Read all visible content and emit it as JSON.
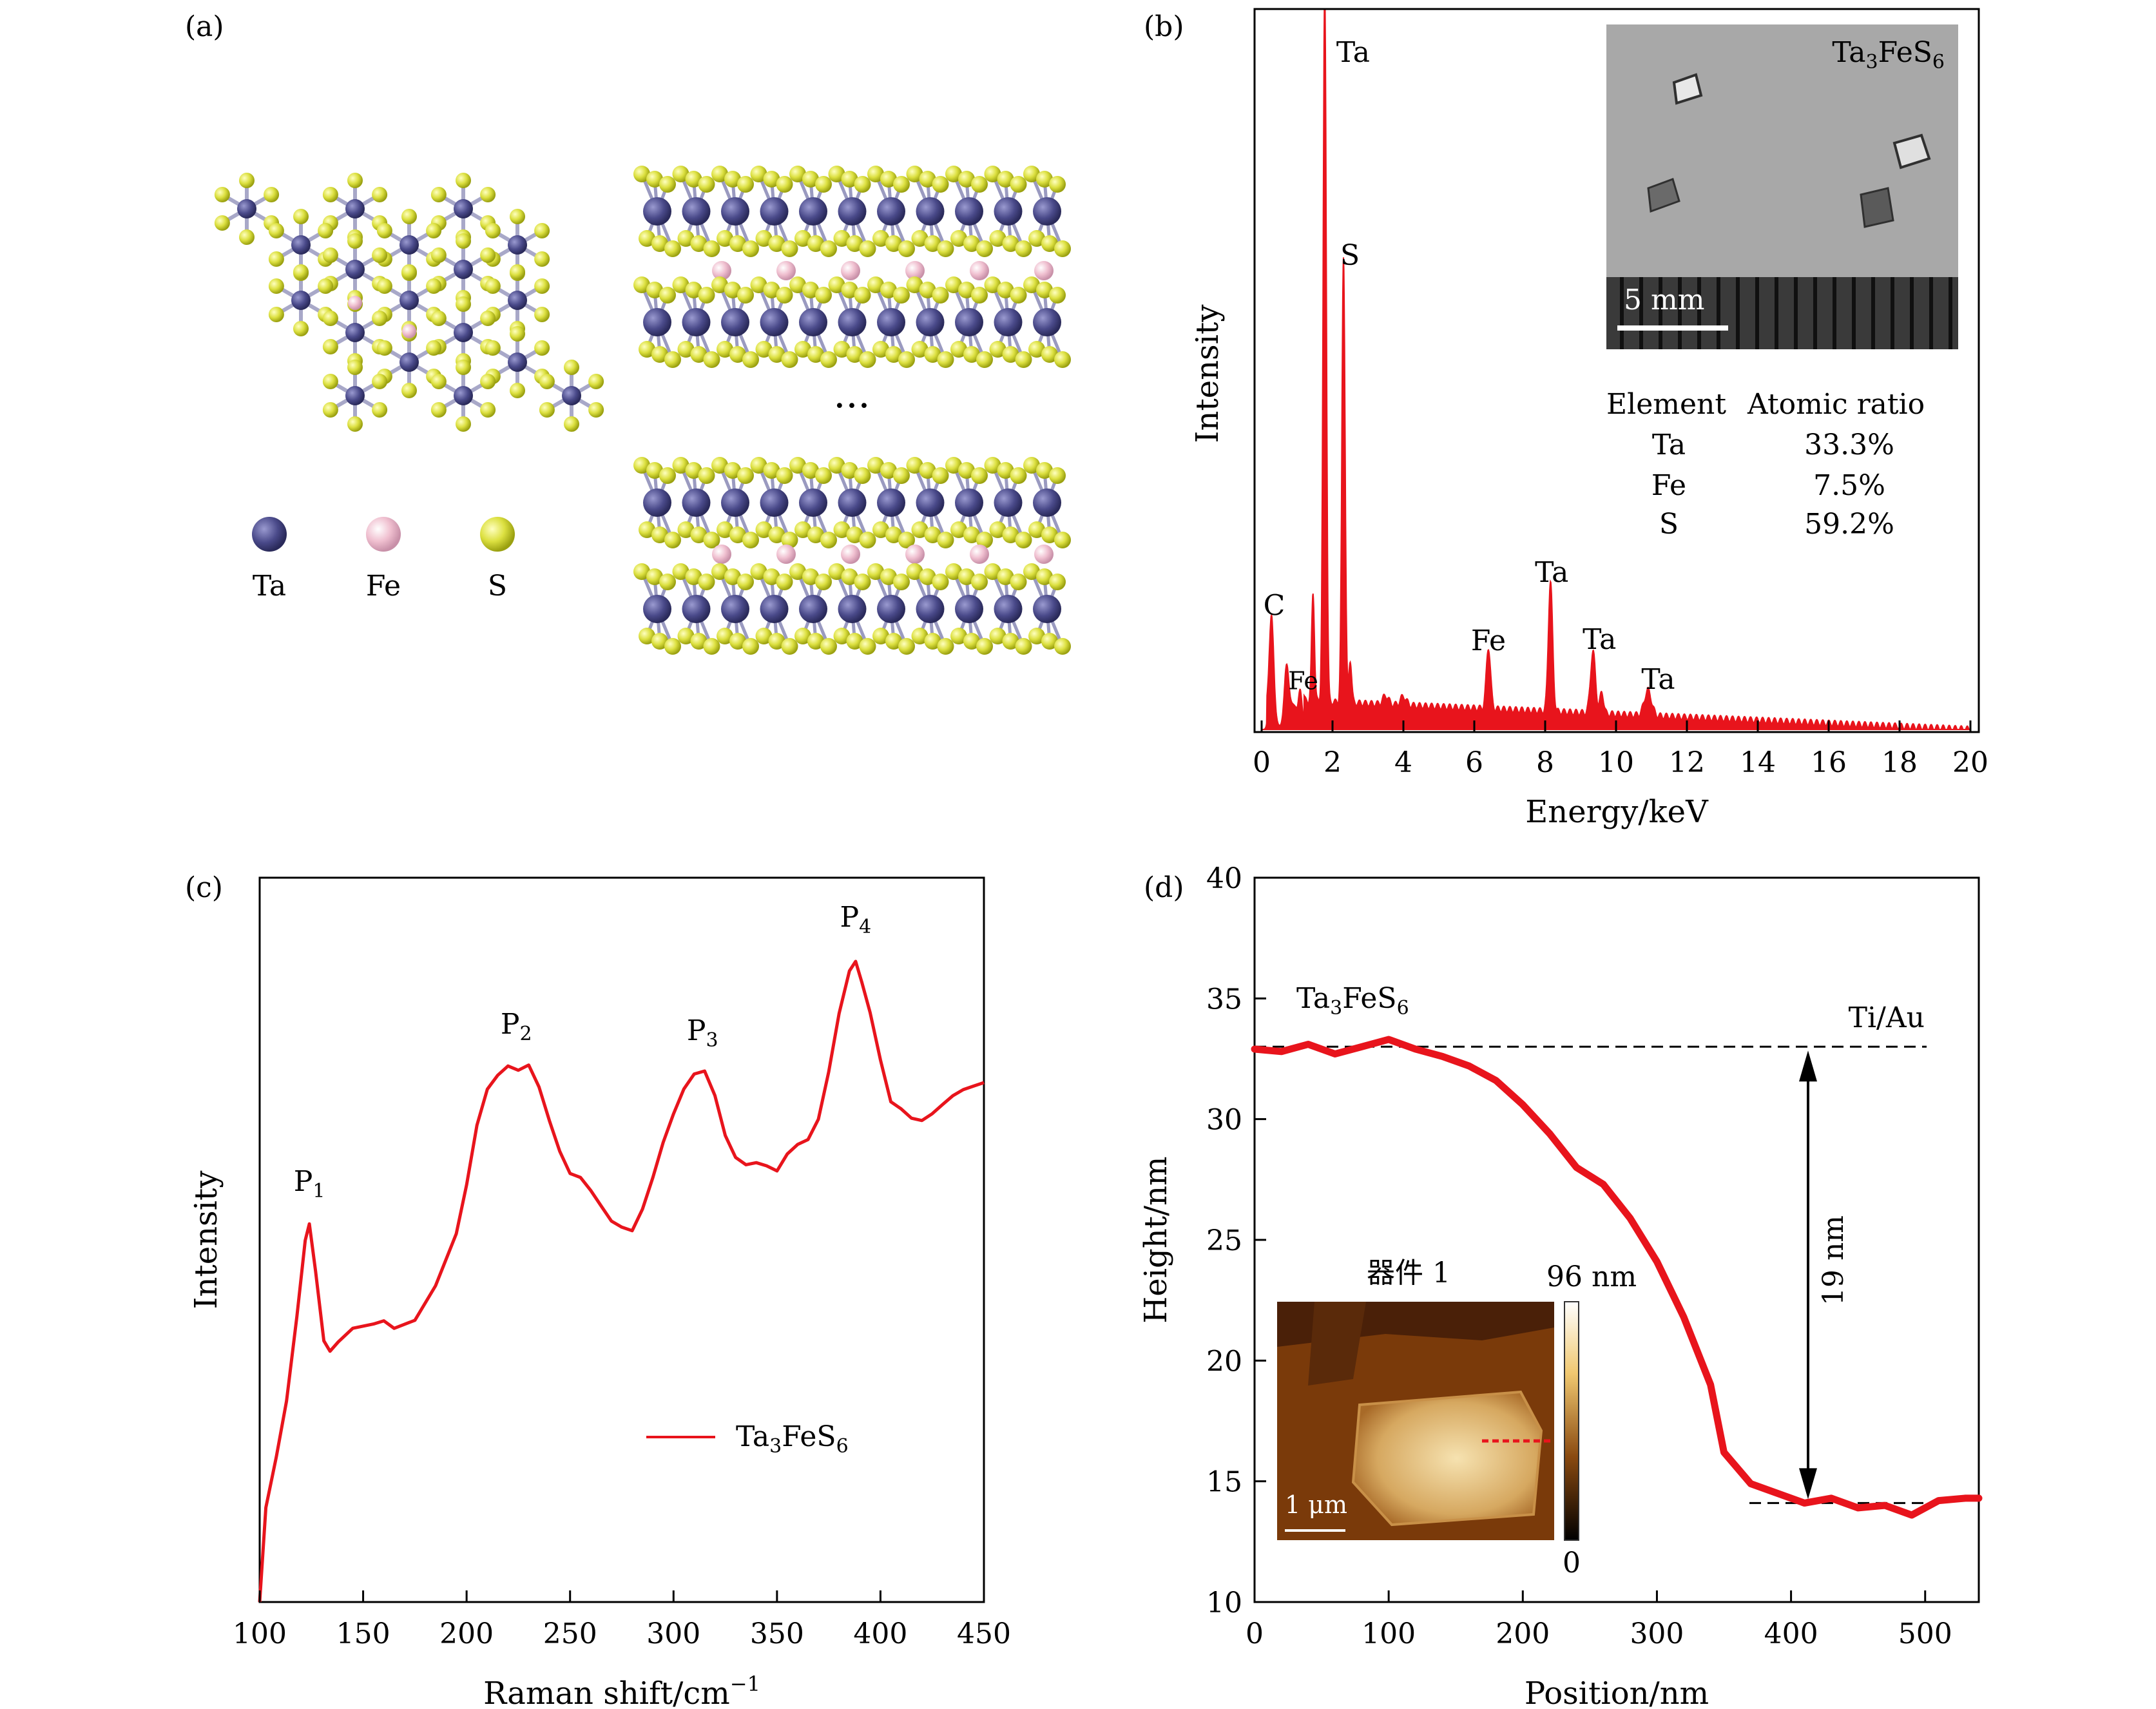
{
  "panels": {
    "a": {
      "tag": "(a)",
      "legend": [
        {
          "label": "Ta",
          "color": "#4a4a8a"
        },
        {
          "label": "Fe",
          "color": "#e8b4c8"
        },
        {
          "label": "S",
          "color": "#d4dc3c"
        }
      ],
      "ellipsis": "···"
    },
    "b": {
      "tag": "(b)",
      "inset_label": "Ta3FeS6",
      "scale_bar": "5 mm",
      "table": {
        "headers": [
          "Element",
          "Atomic ratio"
        ],
        "rows": [
          [
            "Ta",
            "33.3%"
          ],
          [
            "Fe",
            "7.5%"
          ],
          [
            "S",
            "59.2%"
          ]
        ]
      }
    },
    "c": {
      "tag": "(c)"
    },
    "d": {
      "tag": "(d)",
      "inset_title": "器件 1",
      "colorbar_max": "96 nm",
      "colorbar_min": "0",
      "scale_bar": "1 μm",
      "step_label": "19 nm"
    }
  },
  "colors": {
    "series": "#e8141c",
    "afm_light": "#f0d8a0",
    "afm_dark": "#5a2a0a"
  },
  "chart_data": [
    {
      "id": "b",
      "type": "area",
      "xlabel": "Energy/keV",
      "ylabel": "Intensity",
      "xlim": [
        0,
        20
      ],
      "xticks": [
        0,
        2,
        4,
        6,
        8,
        10,
        12,
        14,
        16,
        18,
        20
      ],
      "peaks": [
        {
          "label": "C",
          "x": 0.28,
          "y": 0.13
        },
        {
          "label": "Fe",
          "x": 0.7,
          "y": 0.07
        },
        {
          "label": "Ta",
          "x": 1.78,
          "y": 1.0
        },
        {
          "label": "S",
          "x": 2.31,
          "y": 0.62
        },
        {
          "label": "Fe",
          "x": 6.4,
          "y": 0.085
        },
        {
          "label": "Ta",
          "x": 8.15,
          "y": 0.18
        },
        {
          "label": "Ta",
          "x": 9.35,
          "y": 0.085
        },
        {
          "label": "Ta",
          "x": 10.9,
          "y": 0.035
        }
      ]
    },
    {
      "id": "c",
      "type": "line",
      "xlabel": "Raman shift/cm−1",
      "ylabel": "Intensity",
      "xlim": [
        100,
        450
      ],
      "xticks": [
        100,
        150,
        200,
        250,
        300,
        350,
        400,
        450
      ],
      "series": [
        {
          "name": "Ta3FeS6",
          "x": [
            100,
            103,
            108,
            113,
            118,
            122,
            124,
            127,
            131,
            134,
            138,
            145,
            155,
            160,
            165,
            175,
            185,
            195,
            200,
            205,
            210,
            215,
            220,
            225,
            230,
            235,
            240,
            245,
            250,
            255,
            260,
            265,
            270,
            275,
            280,
            285,
            290,
            295,
            300,
            305,
            310,
            315,
            320,
            325,
            330,
            335,
            340,
            345,
            350,
            355,
            360,
            365,
            370,
            375,
            380,
            385,
            388,
            391,
            395,
            400,
            405,
            410,
            415,
            420,
            425,
            430,
            435,
            440,
            445,
            450
          ],
          "y": [
            0.0,
            0.15,
            0.23,
            0.32,
            0.45,
            0.57,
            0.6,
            0.53,
            0.42,
            0.4,
            0.41,
            0.43,
            0.44,
            0.45,
            0.44,
            0.45,
            0.5,
            0.58,
            0.66,
            0.76,
            0.82,
            0.84,
            0.85,
            0.84,
            0.85,
            0.82,
            0.77,
            0.72,
            0.68,
            0.67,
            0.65,
            0.63,
            0.61,
            0.6,
            0.59,
            0.62,
            0.67,
            0.73,
            0.78,
            0.82,
            0.84,
            0.84,
            0.8,
            0.74,
            0.71,
            0.7,
            0.7,
            0.69,
            0.68,
            0.71,
            0.73,
            0.74,
            0.77,
            0.84,
            0.93,
            1.0,
            1.02,
            0.99,
            0.94,
            0.86,
            0.79,
            0.78,
            0.77,
            0.77,
            0.78,
            0.79,
            0.8,
            0.81,
            0.82,
            0.83
          ]
        }
      ],
      "annotations": [
        {
          "label": "P1",
          "x": 124,
          "y": 0.6
        },
        {
          "label": "P2",
          "x": 224,
          "y": 0.85
        },
        {
          "label": "P3",
          "x": 314,
          "y": 0.84
        },
        {
          "label": "P4",
          "x": 388,
          "y": 1.02
        }
      ]
    },
    {
      "id": "d",
      "type": "line",
      "xlabel": "Position/nm",
      "ylabel": "Height/nm",
      "xlim": [
        0,
        540
      ],
      "ylim": [
        10,
        40
      ],
      "xticks": [
        0,
        100,
        200,
        300,
        400,
        500
      ],
      "yticks": [
        10,
        15,
        20,
        25,
        30,
        35,
        40
      ],
      "series": [
        {
          "x": [
            0,
            20,
            40,
            60,
            80,
            100,
            120,
            140,
            160,
            180,
            200,
            220,
            240,
            260,
            280,
            300,
            320,
            340,
            350,
            370,
            390,
            410,
            430,
            450,
            470,
            490,
            510,
            530,
            540
          ],
          "y": [
            32.9,
            32.8,
            33.1,
            32.7,
            33.0,
            33.3,
            32.9,
            32.6,
            32.2,
            31.6,
            30.6,
            29.4,
            28.0,
            27.3,
            25.9,
            24.1,
            21.8,
            19.0,
            16.2,
            14.9,
            14.5,
            14.1,
            14.3,
            13.9,
            14.0,
            13.6,
            14.2,
            14.3,
            14.3
          ]
        }
      ],
      "annotations": [
        {
          "label": "Ta3FeS6",
          "x": 30,
          "y": 35.5
        },
        {
          "label": "Ti/Au",
          "x": 420,
          "y": 34.5
        }
      ],
      "reference_lines": [
        {
          "y": 33.0
        },
        {
          "y": 14.1
        }
      ]
    }
  ]
}
